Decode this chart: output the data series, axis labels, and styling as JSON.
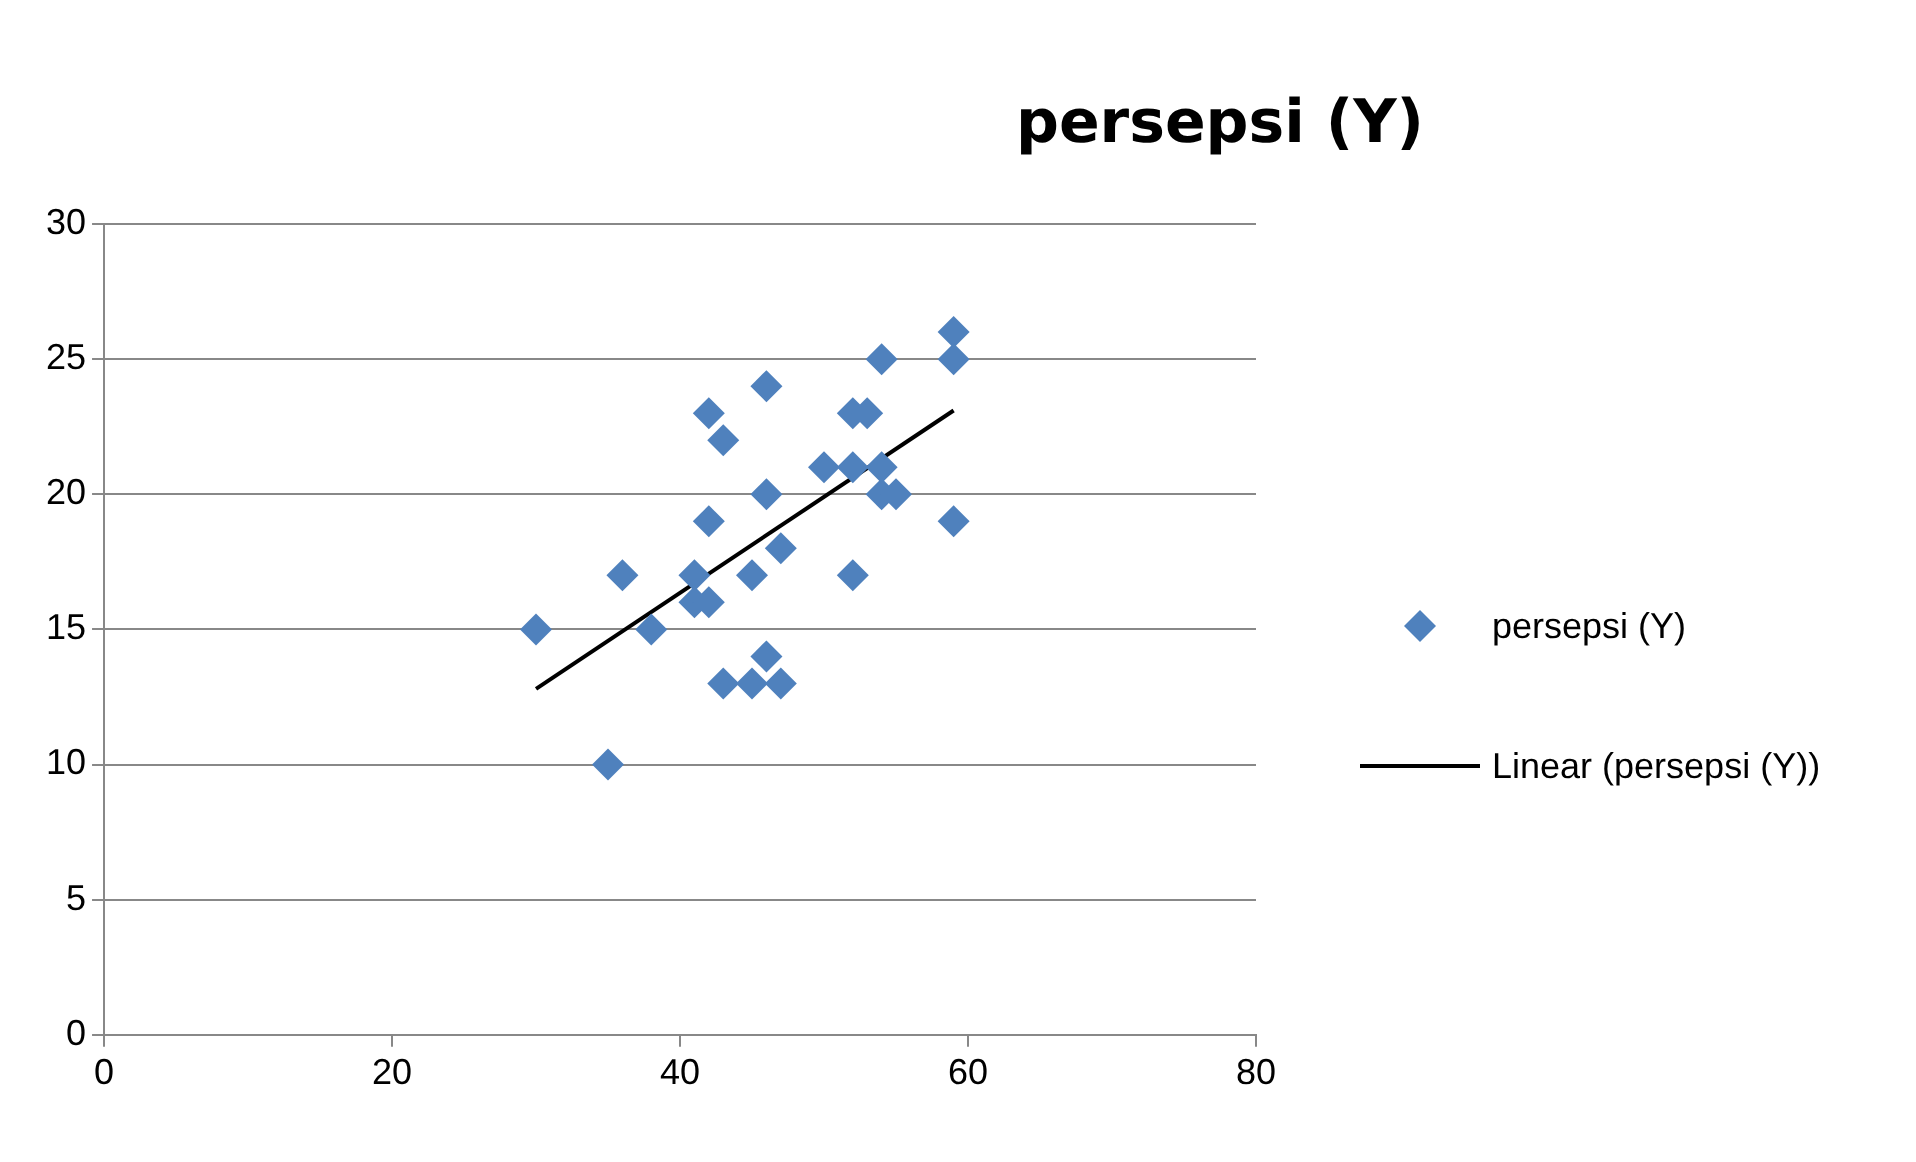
{
  "chart_data": {
    "type": "scatter",
    "title": "persepsi (Y)",
    "legend": "right",
    "grid": "y",
    "marker": "diamond",
    "xlim": [
      0,
      80
    ],
    "xticks": [
      0,
      20,
      40,
      60,
      80
    ],
    "ylim": [
      0,
      30
    ],
    "yticks": [
      0,
      5,
      10,
      15,
      20,
      25,
      30
    ],
    "series": [
      {
        "name": "persepsi (Y)",
        "type": "scatter",
        "color": "#4f81bd",
        "x": [
          30,
          35,
          36,
          38,
          41,
          41,
          42,
          42,
          42,
          43,
          43,
          45,
          45,
          46,
          46,
          46,
          47,
          47,
          50,
          52,
          52,
          52,
          53,
          54,
          54,
          54,
          55,
          59,
          59,
          59
        ],
        "values": [
          15,
          10,
          17,
          15,
          17,
          16,
          23,
          19,
          16,
          22,
          13,
          17,
          13,
          24,
          20,
          14,
          18,
          13,
          21,
          23,
          21,
          17,
          23,
          25,
          21,
          20,
          20,
          26,
          25,
          19
        ]
      },
      {
        "name": "Linear (persepsi (Y))",
        "type": "line",
        "color": "#000000",
        "marker": "none",
        "x": [
          30,
          59
        ],
        "values": [
          12.8,
          23.1
        ]
      }
    ]
  }
}
